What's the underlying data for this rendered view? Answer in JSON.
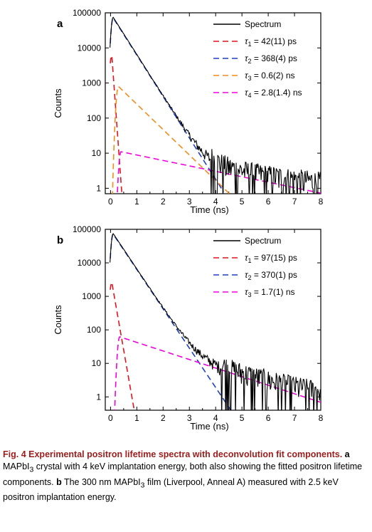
{
  "caption": {
    "fig_label": "Fig. 4",
    "title": "Experimental positron lifetime spectra with deconvolution fit components.",
    "a_letter": "a",
    "a_text_pre": "MAPbI",
    "a_sub": "3",
    "a_text_post": "crystal with 4 keV implantation energy, both also showing the fitted positron lifetime components.",
    "b_letter": "b",
    "b_text_pre": "The 300 nm MAPbI",
    "b_sub": "3",
    "b_text_post": "film (Liverpool, Anneal A) measured with 2.5 keV positron implantation energy."
  },
  "chart_data": [
    {
      "type": "line",
      "panel": "a",
      "xlabel": "Time (ns)",
      "ylabel": "Counts",
      "xlim": [
        -0.2,
        8
      ],
      "ylim": [
        0.7,
        100000
      ],
      "yscale": "log",
      "xticks": [
        "0",
        "1",
        "2",
        "3",
        "4",
        "5",
        "6",
        "7",
        "8"
      ],
      "yticks": [
        "1",
        "10",
        "100",
        "1000",
        "10000",
        "100000"
      ],
      "legend_position": "top-right",
      "series": [
        {
          "name": "Spectrum",
          "color": "#000000",
          "style": "solid",
          "peak": 75000,
          "peak_time": 0.1,
          "tau_ns": 0.368,
          "background": 1.2,
          "noise_threshold": 2.2
        },
        {
          "name_html": "&tau;<sub>1</sub> = 42(11) ps",
          "legend_tau": "1",
          "legend_value": " = 42(11) ps",
          "color": "#e0141e",
          "style": "dashed",
          "peak": 6000,
          "peak_time": 0.05,
          "tau_ns": 0.042,
          "end_time": 0.85
        },
        {
          "legend_tau": "2",
          "legend_value": " = 368(4) ps",
          "color": "#1f3fbf",
          "style": "dashed",
          "peak": 72000,
          "peak_time": 0.1,
          "tau_ns": 0.368,
          "end_time": 4.3
        },
        {
          "legend_tau": "3",
          "legend_value": " = 0.6(2) ns",
          "color": "#f08c1e",
          "style": "dashed",
          "peak": 800,
          "peak_time": 0.3,
          "tau_ns": 0.6,
          "end_time": 4.6
        },
        {
          "legend_tau": "4",
          "legend_value": " = 2.8(1.4) ns",
          "color": "#f000dc",
          "style": "dashed",
          "peak": 11,
          "peak_time": 0.4,
          "tau_ns": 2.8,
          "end_time": 8.0
        }
      ]
    },
    {
      "type": "line",
      "panel": "b",
      "xlabel": "Time (ns)",
      "ylabel": "Counts",
      "xlim": [
        -0.2,
        8
      ],
      "ylim": [
        0.4,
        100000
      ],
      "yscale": "log",
      "xticks": [
        "0",
        "1",
        "2",
        "3",
        "4",
        "5",
        "6",
        "7",
        "8"
      ],
      "yticks": [
        "1",
        "10",
        "100",
        "1000",
        "10000",
        "100000"
      ],
      "legend_position": "top-right",
      "series": [
        {
          "name": "Spectrum",
          "color": "#000000",
          "style": "solid",
          "peak": 75000,
          "peak_time": 0.1,
          "tau_ns": 0.37,
          "background": 1.3,
          "noise_threshold": 2.5
        },
        {
          "legend_tau": "1",
          "legend_value": " = 97(15) ps",
          "color": "#e0141e",
          "style": "dashed",
          "peak": 2600,
          "peak_time": 0.05,
          "tau_ns": 0.097,
          "end_time": 1.2
        },
        {
          "legend_tau": "2",
          "legend_value": " = 370(1) ps",
          "color": "#1f3fbf",
          "style": "dashed",
          "peak": 72000,
          "peak_time": 0.1,
          "tau_ns": 0.37,
          "end_time": 4.85
        },
        {
          "legend_tau": "3",
          "legend_value": " = 1.7(1) ns",
          "color": "#f000dc",
          "style": "dashed",
          "peak": 62,
          "peak_time": 0.35,
          "tau_ns": 1.7,
          "end_time": 8.0
        }
      ]
    }
  ]
}
